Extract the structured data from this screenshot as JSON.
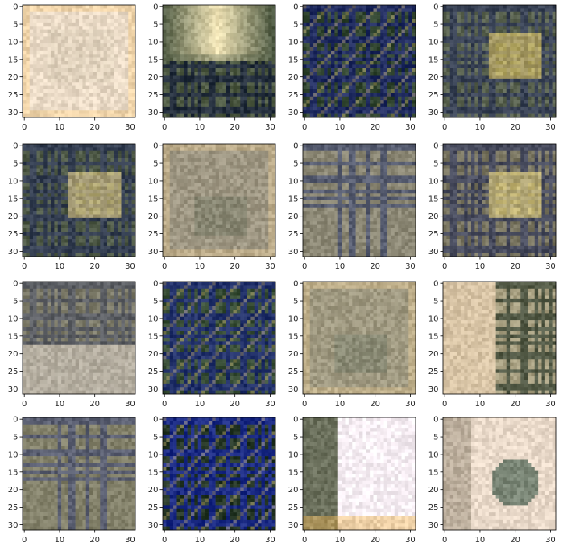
{
  "chart_data": {
    "type": "heatmap",
    "grid": {
      "rows": 4,
      "cols": 4
    },
    "image_size": [
      32,
      32
    ],
    "xlim": [
      -0.5,
      31.5
    ],
    "ylim": [
      31.5,
      -0.5
    ],
    "x_ticks": [
      0,
      10,
      20,
      30
    ],
    "y_ticks": [
      0,
      5,
      10,
      15,
      20,
      25,
      30
    ],
    "grid_lines": false,
    "panels": [
      {
        "style": "light",
        "base": "#ecdcc8",
        "accent": "#bdb39a"
      },
      {
        "style": "bright-top",
        "base": "#4d5942",
        "accent": "#f3e6b8"
      },
      {
        "style": "dark-plaid",
        "base": "#263024",
        "accent": "#1e2a6e"
      },
      {
        "style": "mixed-plaid",
        "base": "#5a6350",
        "accent": "#e9cf6a"
      },
      {
        "style": "mixed-plaid",
        "base": "#4f5a47",
        "accent": "#ecd58a"
      },
      {
        "style": "muted",
        "base": "#a39a86",
        "accent": "#6d735f"
      },
      {
        "style": "muted-plaid",
        "base": "#8c8875",
        "accent": "#2c3a6d"
      },
      {
        "style": "mixed-plaid",
        "base": "#7a7661",
        "accent": "#f2dd80"
      },
      {
        "style": "mixed",
        "base": "#7d7b69",
        "accent": "#d9cfc4"
      },
      {
        "style": "dark-plaid",
        "base": "#2e3a2b",
        "accent": "#1f2f7a"
      },
      {
        "style": "muted",
        "base": "#a59d84",
        "accent": "#6b7462"
      },
      {
        "style": "split",
        "base": "#cdb99a",
        "accent": "#2a3a2a"
      },
      {
        "style": "muted-plaid",
        "base": "#828069",
        "accent": "#3a4478"
      },
      {
        "style": "dark-plaid",
        "base": "#141a14",
        "accent": "#1d2fa0"
      },
      {
        "style": "light-split",
        "base": "#f7eef4",
        "accent": "#6b705c"
      },
      {
        "style": "light-blob",
        "base": "#e9d9c9",
        "accent": "#556a5a"
      }
    ]
  }
}
